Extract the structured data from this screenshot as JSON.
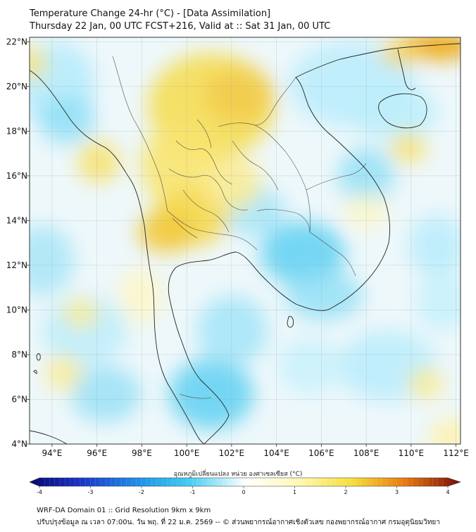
{
  "header": {
    "title_line1": "Temperature Change 24-hr (°C) - [Data Assimilation]",
    "title_line2": "Thursday 22 Jan, 00 UTC FCST+216, Valid at :: Sat 31 Jan, 00 UTC"
  },
  "map": {
    "lon_range": [
      93,
      112.2
    ],
    "lat_range": [
      4,
      22.2
    ],
    "lon_ticks": [
      "94°E",
      "96°E",
      "98°E",
      "100°E",
      "102°E",
      "104°E",
      "106°E",
      "108°E",
      "110°E",
      "112°E"
    ],
    "lon_tick_values": [
      94,
      96,
      98,
      100,
      102,
      104,
      106,
      108,
      110,
      112
    ],
    "lat_ticks": [
      "22°N",
      "20°N",
      "18°N",
      "16°N",
      "14°N",
      "12°N",
      "10°N",
      "8°N",
      "6°N",
      "4°N"
    ],
    "lat_tick_values": [
      22,
      20,
      18,
      16,
      14,
      12,
      10,
      8,
      6,
      4
    ],
    "grid": true,
    "colors": {
      "cool_strong": "#1fb5e8",
      "cool_light": "#b9ecfb",
      "neutral": "#ffffff",
      "warm_light": "#fff4b0",
      "warm": "#f5dd55",
      "warm_strong": "#f1a400"
    }
  },
  "colorbar": {
    "title": "อุณหภูมิเปลี่ยนแปลง หน่วย องศาเซลเซียส (°C)",
    "ticks": [
      "-4",
      "-3",
      "-2",
      "-1",
      "0",
      "1",
      "2",
      "3",
      "4"
    ],
    "tick_values": [
      -4,
      -3,
      -2,
      -1,
      0,
      1,
      2,
      3,
      4
    ],
    "range": [
      -4,
      4
    ]
  },
  "footer": {
    "line1": "WRF-DA Domain 01 :: Grid Resolution 9km x 9km",
    "line2": "ปรับปรุงข้อมูล ณ เวลา 07:00น. วัน พฤ. ที่ 22 ม.ค. 2569 -- © ส่วนพยากรณ์อากาศเชิงตัวเลข กองพยากรณ์อากาศ กรมอุตุนิยมวิทยา"
  }
}
